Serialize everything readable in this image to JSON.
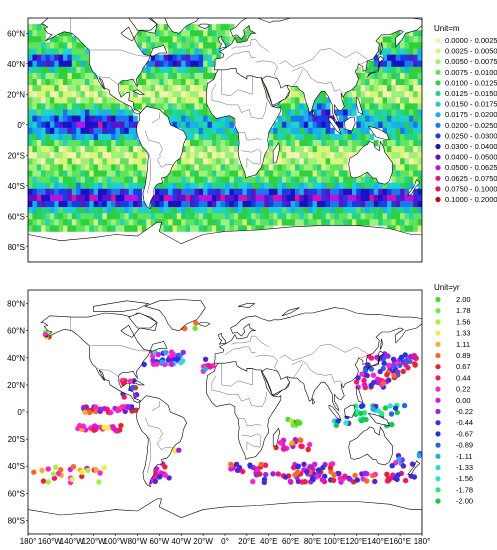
{
  "top_map": {
    "unit_label": "Unit=m",
    "legend": [
      {
        "label": "0.0000 - 0.0025",
        "color": "#f5f0b4"
      },
      {
        "label": "0.0025 - 0.0050",
        "color": "#d8f57a"
      },
      {
        "label": "0.0050 - 0.0075",
        "color": "#9ef07a"
      },
      {
        "label": "0.0075 - 0.0100",
        "color": "#5fe35c"
      },
      {
        "label": "0.0100 - 0.0125",
        "color": "#2ed13c"
      },
      {
        "label": "0.0125 - 0.0150",
        "color": "#20d48a"
      },
      {
        "label": "0.0150 - 0.0175",
        "color": "#1fd0d0"
      },
      {
        "label": "0.0175 - 0.0200",
        "color": "#18b0ee"
      },
      {
        "label": "0.0200 - 0.0250",
        "color": "#1878f0"
      },
      {
        "label": "0.0250 - 0.0300",
        "color": "#1a3ce6"
      },
      {
        "label": "0.0300 - 0.0400",
        "color": "#1a10c8"
      },
      {
        "label": "0.0400 - 0.0500",
        "color": "#6010c8"
      },
      {
        "label": "0.0500 - 0.0625",
        "color": "#c010e0"
      },
      {
        "label": "0.0625 - 0.0750",
        "color": "#e81090"
      },
      {
        "label": "0.0750 - 0.1000",
        "color": "#f01050"
      },
      {
        "label": "0.1000 - 0.2000",
        "color": "#d00018"
      }
    ]
  },
  "bottom_map": {
    "unit_label": "Unit=yr",
    "legend": [
      {
        "label": "2.00",
        "color": "#44dd22"
      },
      {
        "label": "1.78",
        "color": "#66ee33"
      },
      {
        "label": "1.56",
        "color": "#aaee44"
      },
      {
        "label": "1.33",
        "color": "#eeee44"
      },
      {
        "label": "1.11",
        "color": "#ffaa22"
      },
      {
        "label": "0.89",
        "color": "#ff6622"
      },
      {
        "label": "0.67",
        "color": "#ee2222"
      },
      {
        "label": "0.44",
        "color": "#ff1166"
      },
      {
        "label": "0.22",
        "color": "#ff22cc"
      },
      {
        "label": "0.00",
        "color": "#dd11ee"
      },
      {
        "label": "-0.22",
        "color": "#9922ee"
      },
      {
        "label": "-0.44",
        "color": "#5522dd"
      },
      {
        "label": "-0.67",
        "color": "#2233ee"
      },
      {
        "label": "-0.89",
        "color": "#2266ee"
      },
      {
        "label": "-1.11",
        "color": "#22aaee"
      },
      {
        "label": "-1.33",
        "color": "#22dddd"
      },
      {
        "label": "-1.56",
        "color": "#22eebb"
      },
      {
        "label": "-1.78",
        "color": "#22ee77"
      },
      {
        "label": "-2.00",
        "color": "#11cc44"
      }
    ]
  },
  "lat_labels": [
    "80°N",
    "60°N",
    "40°N",
    "20°N",
    "0°",
    "20°S",
    "40°S",
    "60°S",
    "80°S"
  ],
  "lon_labels": [
    "180°",
    "160°W",
    "140°W",
    "120°W",
    "100°W",
    "80°W",
    "60°W",
    "40°W",
    "20°W",
    "0°",
    "20°E",
    "40°E",
    "60°E",
    "80°E",
    "100°E",
    "120°E",
    "140°E",
    "160°E",
    "180°"
  ]
}
